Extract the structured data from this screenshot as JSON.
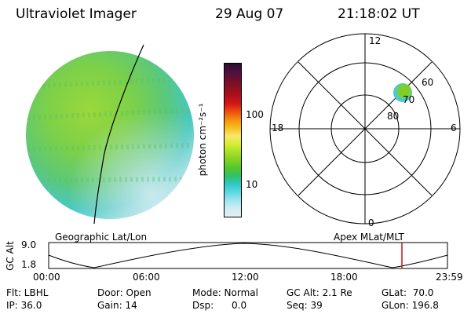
{
  "header": {
    "instrument": "Ultraviolet Imager",
    "date": "29 Aug 07",
    "time": "21:18:02 UT"
  },
  "geo_panel": {
    "caption": "Geographic Lat/Lon"
  },
  "polar_panel": {
    "caption": "Apex MLat/MLT",
    "mlt_labels": [
      "12",
      "18",
      "6",
      "0"
    ],
    "mlat_labels": [
      "60",
      "70",
      "80"
    ]
  },
  "colorbar": {
    "unit": "photon cm⁻²s⁻¹",
    "ticks": [
      "100",
      "10"
    ],
    "colors": [
      "#2b0f30",
      "#4a1040",
      "#6e0f2c",
      "#8c1020",
      "#b0101a",
      "#d21818",
      "#ee5010",
      "#f49010",
      "#f6c020",
      "#f8e870",
      "#d6ee30",
      "#a6e02a",
      "#7ed028",
      "#50c828",
      "#30c070",
      "#30c8c8",
      "#60d8e0",
      "#a0e4f0",
      "#d0ecf4",
      "#e6eef2"
    ]
  },
  "timeline": {
    "ylabel": "GC Alt",
    "y_ticks": [
      "9.0",
      "1.8"
    ],
    "x_ticks": [
      "00:00",
      "06:00",
      "12:00",
      "18:00",
      "23:59"
    ],
    "marker_time": "21:18"
  },
  "info": {
    "col1": [
      "Flt: LBHL",
      "IP: 36.0"
    ],
    "col2": [
      "Door: Open",
      "Gain: 14"
    ],
    "col3": [
      "Mode: Normal",
      "Dsp:      0.0"
    ],
    "col4": [
      "GC Alt: 2.1 Re",
      "Seq: 39"
    ],
    "col5": [
      "GLat:  70.0",
      "GLon: 196.8"
    ]
  }
}
